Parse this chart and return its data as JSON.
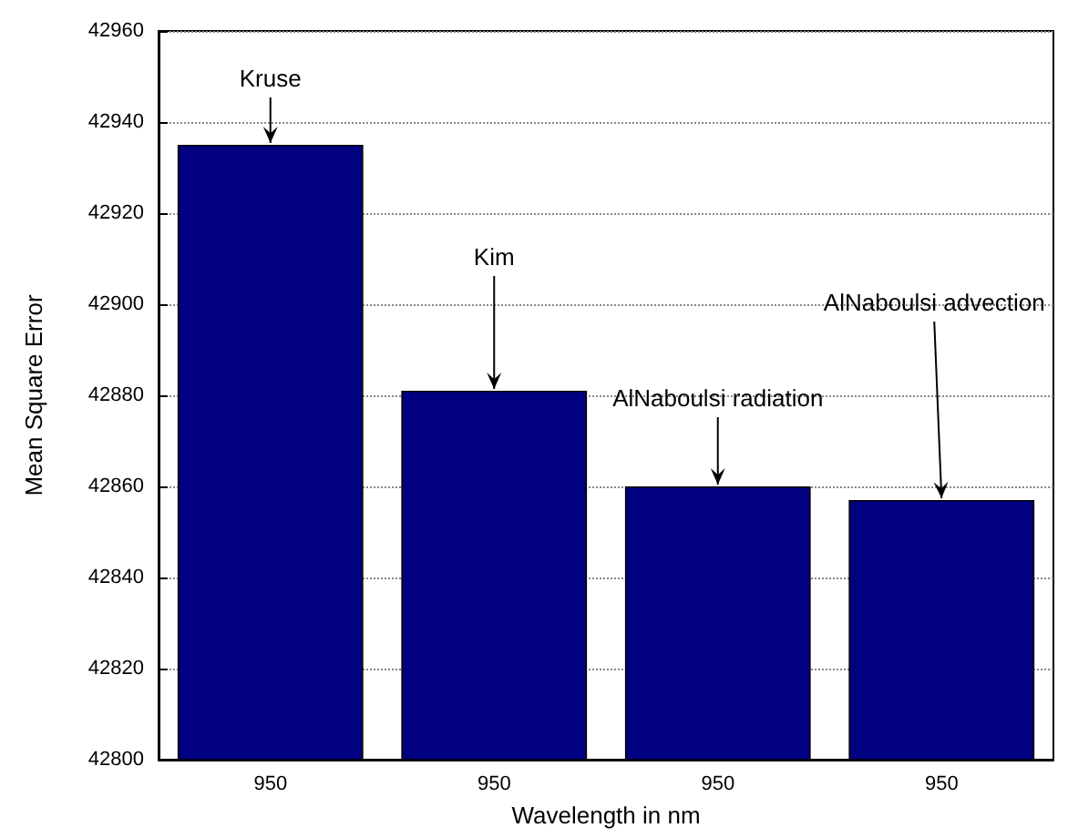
{
  "chart_data": {
    "type": "bar",
    "xlabel": "Wavelength in nm",
    "ylabel": "Mean Square Error",
    "categories": [
      "950",
      "950",
      "950",
      "950"
    ],
    "values": [
      42935,
      42881,
      42860,
      42857
    ],
    "color": "#000080",
    "ylim": [
      42800,
      42960
    ],
    "yticks": [
      42800,
      42820,
      42840,
      42860,
      42880,
      42900,
      42920,
      42940,
      42960
    ],
    "grid": "y",
    "annotations": [
      {
        "text": "Kruse",
        "y": 42935
      },
      {
        "text": "Kim",
        "y": 42881
      },
      {
        "text": "AlNaboulsi radiation",
        "y": 42860
      },
      {
        "text": "AlNaboulsi advection",
        "y": 42857
      }
    ]
  }
}
